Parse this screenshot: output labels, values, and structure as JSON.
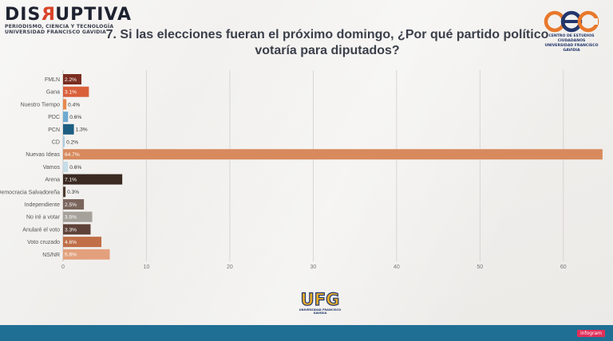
{
  "brand": {
    "name_part1": "DIS",
    "name_r": "R",
    "name_part2": "UPTIVA",
    "tagline1": "PERIODISMO, CIENCIA Y TECNOLOGÍA",
    "tagline2": "UNIVERSIDAD FRANCISCO GAVIDIA"
  },
  "cec": {
    "line1": "CENTRO DE ESTUDIOS CIUDADANOS",
    "line2": "UNIVERSIDAD FRANCISCO GAVIDIA"
  },
  "ufg": {
    "word": "UFG",
    "sub": "UNIVERSIDAD FRANCISCO GAVIDIA"
  },
  "footer": {
    "badge": "infogram"
  },
  "chart_data": {
    "type": "bar",
    "orientation": "horizontal",
    "title": "7. Si las elecciones fueran el próximo domingo, ¿Por qué partido político votaría para diputados?",
    "categories": [
      "FMLN",
      "Gana",
      "Nuestro Tiempo",
      "PDC",
      "PCN",
      "CD",
      "Nuevas Ideas",
      "Vamos",
      "Arena",
      "Democracia Salvadoreña",
      "Independiente",
      "No iré a votar",
      "Anularé el voto",
      "Voto cruzado",
      "NS/NR"
    ],
    "values": [
      2.2,
      3.1,
      0.4,
      0.6,
      1.3,
      0.2,
      64.7,
      0.6,
      7.1,
      0.3,
      2.5,
      3.5,
      3.3,
      4.6,
      5.6
    ],
    "value_labels": [
      "2.2%",
      "3.1%",
      "0.4%",
      "0.6%",
      "1.3%",
      "0.2%",
      "64.7%",
      "0.6%",
      "7.1%",
      "0.3%",
      "2.5%",
      "3.5%",
      "3.3%",
      "4.6%",
      "5.6%"
    ],
    "colors": [
      "#7b2d20",
      "#d9603a",
      "#e8894e",
      "#6fa9d0",
      "#1d5e82",
      "#a9cde2",
      "#d88a5d",
      "#c6dde8",
      "#3b2a22",
      "#4f3a30",
      "#7a655d",
      "#a6a19b",
      "#5e4138",
      "#c06f48",
      "#e3a07c"
    ],
    "xticks": [
      0,
      10,
      20,
      30,
      40,
      50,
      60
    ],
    "xlim": [
      0,
      65
    ],
    "grid": true,
    "xlabel": "",
    "ylabel": ""
  }
}
